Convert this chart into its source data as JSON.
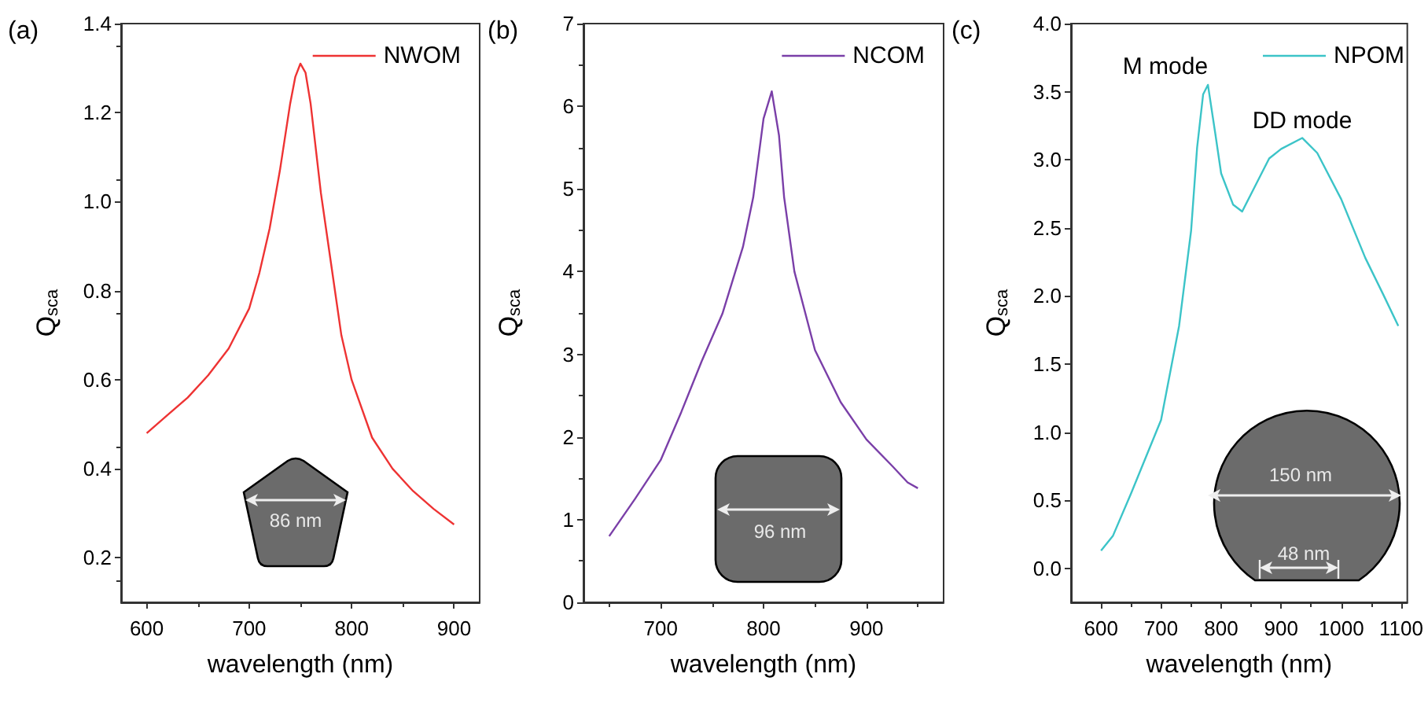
{
  "chart_data": [
    {
      "type": "line",
      "title": "(a)",
      "xlabel": "wavelength (nm)",
      "ylabel": "Q$_{sca}$",
      "legend": "top right",
      "marker": "none",
      "xlim": [
        575,
        925
      ],
      "xticks": [
        600,
        700,
        800,
        900
      ],
      "ylim": [
        0.1,
        1.4
      ],
      "yticks": [
        0.2,
        0.4,
        0.6,
        0.8,
        {
          "value": 1,
          "label": "1.0"
        },
        1.2,
        1.4
      ],
      "x": [
        600,
        620,
        640,
        660,
        680,
        700,
        710,
        720,
        730,
        740,
        745,
        750,
        755,
        760,
        770,
        780,
        790,
        800,
        820,
        840,
        860,
        880,
        900
      ],
      "series": [
        {
          "name": "NWOM",
          "color": "#ee3333",
          "values": [
            0.48,
            0.52,
            0.56,
            0.61,
            0.67,
            0.76,
            0.84,
            0.94,
            1.07,
            1.22,
            1.28,
            1.31,
            1.29,
            1.22,
            1.02,
            0.86,
            0.7,
            0.6,
            0.47,
            0.4,
            0.35,
            0.31,
            0.275
          ]
        }
      ],
      "annotations": [
        "86 nm"
      ]
    },
    {
      "type": "line",
      "title": "(b)",
      "xlabel": "wavelength (nm)",
      "ylabel": "Q$_{sca}$",
      "legend": "top right",
      "marker": "none",
      "xlim": [
        625,
        975
      ],
      "xticks": [
        700,
        800,
        900
      ],
      "ylim": [
        0,
        7
      ],
      "yticks": [
        0,
        1,
        2,
        3,
        4,
        5,
        6,
        7
      ],
      "x": [
        650,
        675,
        700,
        720,
        740,
        760,
        780,
        790,
        800,
        808,
        815,
        820,
        830,
        850,
        875,
        900,
        925,
        940,
        950
      ],
      "series": [
        {
          "name": "NCOM",
          "color": "#7a3fa8",
          "values": [
            0.8,
            1.25,
            1.72,
            2.3,
            2.92,
            3.49,
            4.3,
            4.9,
            5.85,
            6.18,
            5.65,
            4.9,
            4.0,
            3.05,
            2.42,
            1.97,
            1.65,
            1.45,
            1.38
          ]
        }
      ],
      "annotations": [
        "96 nm"
      ]
    },
    {
      "type": "line",
      "title": "(c)",
      "xlabel": "wavelength (nm)",
      "ylabel": "Q$_{sca}$",
      "legend": "top right",
      "marker": "none",
      "xlim": [
        550,
        1110
      ],
      "xticks": [
        600,
        700,
        800,
        900,
        1000,
        1100
      ],
      "ylim": [
        -0.25,
        4
      ],
      "yticks": [
        {
          "value": 0,
          "label": "0.0"
        },
        0.5,
        {
          "value": 1,
          "label": "1.0"
        },
        1.5,
        {
          "value": 2,
          "label": "2.0"
        },
        2.5,
        {
          "value": 3,
          "label": "3.0"
        },
        3.5,
        {
          "value": 4,
          "label": "4.0"
        }
      ],
      "x": [
        600,
        620,
        650,
        700,
        730,
        750,
        760,
        770,
        778,
        790,
        800,
        820,
        835,
        850,
        880,
        900,
        935,
        960,
        1000,
        1040,
        1070,
        1095
      ],
      "series": [
        {
          "name": "NPOM",
          "color": "#3cc4c8",
          "values": [
            0.13,
            0.24,
            0.55,
            1.09,
            1.78,
            2.48,
            3.09,
            3.48,
            3.55,
            3.2,
            2.9,
            2.67,
            2.62,
            2.75,
            3.01,
            3.08,
            3.16,
            3.05,
            2.71,
            2.28,
            2.01,
            1.78
          ]
        }
      ],
      "annotations": [
        {
          "text": "M mode",
          "x": 778,
          "y": 3.55
        },
        {
          "text": "DD mode",
          "x": 935,
          "y": 3.15
        },
        "150 nm",
        "48 nm"
      ]
    }
  ]
}
